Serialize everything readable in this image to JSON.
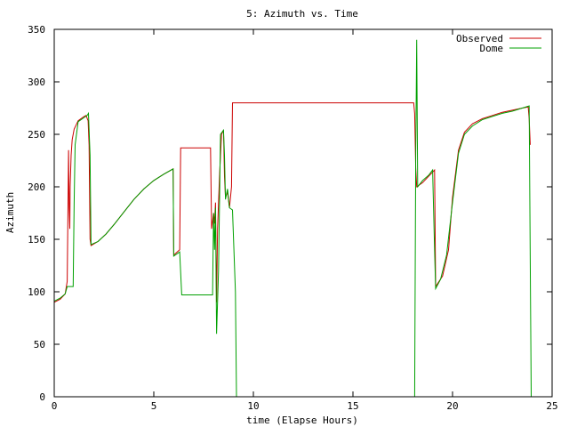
{
  "chart_data": {
    "type": "line",
    "title": "5: Azimuth vs. Time",
    "xlabel": "time (Elapse Hours)",
    "ylabel": "Azimuth",
    "xlim": [
      0,
      25
    ],
    "ylim": [
      0,
      350
    ],
    "x_ticks": [
      0,
      5,
      10,
      15,
      20,
      25
    ],
    "y_ticks": [
      0,
      50,
      100,
      150,
      200,
      250,
      300,
      350
    ],
    "x_tick_labels": [
      "0",
      "5",
      "10",
      "15",
      "20",
      "25"
    ],
    "y_tick_labels": [
      "0",
      "50",
      "100",
      "150",
      "200",
      "250",
      "300",
      "350"
    ],
    "grid": false,
    "legend_position": "top-right",
    "series": [
      {
        "name": "Observed",
        "color": "#cc0000",
        "points": [
          [
            0.0,
            90
          ],
          [
            0.3,
            93
          ],
          [
            0.55,
            98
          ],
          [
            0.65,
            110
          ],
          [
            0.7,
            200
          ],
          [
            0.72,
            235
          ],
          [
            0.75,
            180
          ],
          [
            0.78,
            160
          ],
          [
            0.8,
            200
          ],
          [
            0.85,
            230
          ],
          [
            0.9,
            245
          ],
          [
            1.0,
            255
          ],
          [
            1.2,
            263
          ],
          [
            1.5,
            267
          ],
          [
            1.6,
            268
          ],
          [
            1.7,
            263
          ],
          [
            1.75,
            240
          ],
          [
            1.8,
            150
          ],
          [
            1.85,
            144
          ],
          [
            2.2,
            148
          ],
          [
            2.6,
            155
          ],
          [
            3.0,
            164
          ],
          [
            3.5,
            176
          ],
          [
            4.0,
            188
          ],
          [
            4.5,
            198
          ],
          [
            5.0,
            206
          ],
          [
            5.5,
            212
          ],
          [
            5.97,
            217
          ],
          [
            6.0,
            135
          ],
          [
            6.3,
            140
          ],
          [
            6.35,
            237
          ],
          [
            7.85,
            237
          ],
          [
            7.9,
            160
          ],
          [
            8.0,
            175
          ],
          [
            8.05,
            165
          ],
          [
            8.1,
            185
          ],
          [
            8.15,
            90
          ],
          [
            8.2,
            160
          ],
          [
            8.3,
            210
          ],
          [
            8.4,
            250
          ],
          [
            8.5,
            254
          ],
          [
            8.55,
            210
          ],
          [
            8.6,
            190
          ],
          [
            8.7,
            195
          ],
          [
            8.8,
            180
          ],
          [
            8.9,
            200
          ],
          [
            8.95,
            280
          ],
          [
            18.05,
            280
          ],
          [
            18.1,
            270
          ],
          [
            18.15,
            218
          ],
          [
            18.2,
            200
          ],
          [
            18.5,
            204
          ],
          [
            18.8,
            210
          ],
          [
            19.1,
            216
          ],
          [
            19.15,
            105
          ],
          [
            19.5,
            115
          ],
          [
            19.8,
            140
          ],
          [
            20.0,
            190
          ],
          [
            20.3,
            235
          ],
          [
            20.6,
            252
          ],
          [
            21.0,
            260
          ],
          [
            21.5,
            265
          ],
          [
            22.0,
            268
          ],
          [
            22.5,
            271
          ],
          [
            23.0,
            273
          ],
          [
            23.5,
            275
          ],
          [
            23.8,
            276
          ],
          [
            23.85,
            265
          ],
          [
            23.9,
            240
          ]
        ]
      },
      {
        "name": "Dome",
        "color": "#00a000",
        "points": [
          [
            0.0,
            91
          ],
          [
            0.3,
            94
          ],
          [
            0.55,
            98
          ],
          [
            0.65,
            105
          ],
          [
            0.95,
            105
          ],
          [
            1.0,
            185
          ],
          [
            1.05,
            240
          ],
          [
            1.2,
            262
          ],
          [
            1.5,
            266
          ],
          [
            1.65,
            268
          ],
          [
            1.72,
            270
          ],
          [
            1.8,
            230
          ],
          [
            1.85,
            145
          ],
          [
            2.2,
            148
          ],
          [
            2.6,
            155
          ],
          [
            3.0,
            164
          ],
          [
            3.5,
            176
          ],
          [
            4.0,
            188
          ],
          [
            4.5,
            198
          ],
          [
            5.0,
            206
          ],
          [
            5.5,
            212
          ],
          [
            5.97,
            217
          ],
          [
            6.0,
            134
          ],
          [
            6.3,
            138
          ],
          [
            6.4,
            97
          ],
          [
            7.95,
            97
          ],
          [
            8.0,
            175
          ],
          [
            8.05,
            140
          ],
          [
            8.1,
            180
          ],
          [
            8.15,
            60
          ],
          [
            8.25,
            120
          ],
          [
            8.35,
            250
          ],
          [
            8.5,
            254
          ],
          [
            8.55,
            230
          ],
          [
            8.6,
            188
          ],
          [
            8.7,
            198
          ],
          [
            8.8,
            180
          ],
          [
            8.95,
            178
          ],
          [
            9.1,
            100
          ],
          [
            9.15,
            0
          ],
          [
            18.1,
            0
          ],
          [
            18.15,
            230
          ],
          [
            18.2,
            340
          ],
          [
            18.25,
            200
          ],
          [
            18.5,
            206
          ],
          [
            18.8,
            211
          ],
          [
            19.0,
            216
          ],
          [
            19.1,
            140
          ],
          [
            19.15,
            103
          ],
          [
            19.4,
            112
          ],
          [
            19.7,
            135
          ],
          [
            20.0,
            185
          ],
          [
            20.3,
            232
          ],
          [
            20.6,
            250
          ],
          [
            21.0,
            258
          ],
          [
            21.5,
            264
          ],
          [
            22.0,
            267
          ],
          [
            22.5,
            270
          ],
          [
            23.0,
            272
          ],
          [
            23.5,
            275
          ],
          [
            23.85,
            277
          ],
          [
            23.9,
            130
          ],
          [
            23.95,
            0
          ]
        ]
      }
    ]
  }
}
